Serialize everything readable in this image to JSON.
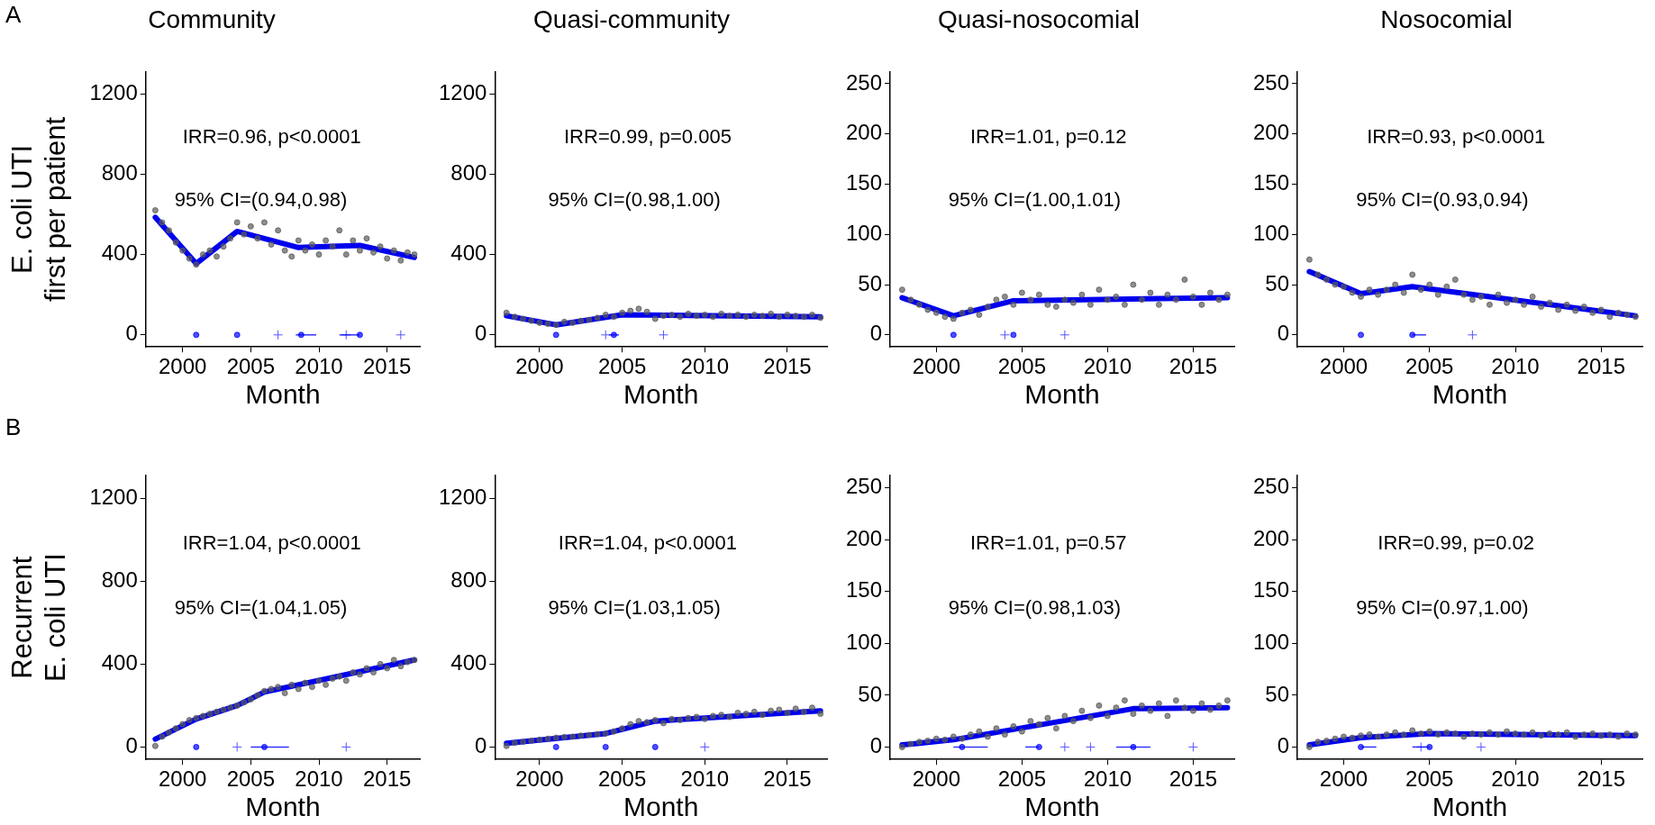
{
  "chart_data": [
    {
      "type": "scatter",
      "title": "Community",
      "xlabel": "Month",
      "ylabel": [
        "E. coli UTI",
        "first per patient"
      ],
      "xlim": [
        1997.3,
        2017.4
      ],
      "xticks": [
        2000,
        2005,
        2010,
        2015
      ],
      "ylim": [
        -60,
        1310
      ],
      "yticks": [
        0,
        400,
        800,
        1200
      ],
      "annotations": [
        "IRR=0.96, p<0.0001",
        "95% CI=(0.94,0.98)",
        "A"
      ],
      "series": [
        {
          "type": "scatter",
          "color": "#5a5a5a",
          "marker": "circle",
          "x": [
            1998,
            1998.5,
            1999,
            1999.5,
            2000,
            2000.5,
            2001,
            2001.5,
            2002,
            2002.5,
            2003,
            2003.5,
            2004,
            2004.5,
            2005,
            2005.5,
            2006,
            2006.5,
            2007,
            2007.5,
            2008,
            2008.5,
            2009,
            2009.5,
            2010,
            2010.5,
            2011,
            2011.5,
            2012,
            2012.5,
            2013,
            2013.5,
            2014,
            2014.5,
            2015,
            2015.5,
            2016,
            2016.5,
            2017
          ],
          "values": [
            620,
            560,
            520,
            460,
            420,
            380,
            350,
            400,
            420,
            390,
            440,
            480,
            560,
            500,
            540,
            480,
            560,
            450,
            520,
            420,
            390,
            470,
            420,
            450,
            400,
            470,
            440,
            520,
            400,
            470,
            420,
            480,
            410,
            440,
            380,
            420,
            370,
            410,
            400
          ]
        },
        {
          "type": "line",
          "color": "#0000ee",
          "x": [
            1998,
            2001,
            2004,
            2008.5,
            2013,
            2017
          ],
          "values": [
            585,
            355,
            515,
            435,
            445,
            385
          ]
        },
        {
          "type": "scatter",
          "color": "#0000ff",
          "marker": "circle",
          "x": [
            2001,
            2004,
            2008.7,
            2013
          ],
          "values": [
            0,
            0,
            0,
            0
          ],
          "xerrors": [
            null,
            null,
            [
              2008.3,
              2009.8
            ],
            [
              2011.5,
              2013
            ]
          ]
        },
        {
          "type": "scatter",
          "color": "#5555ff",
          "marker": "cross",
          "x": [
            2007,
            2012,
            2016
          ],
          "values": [
            0,
            0,
            0
          ]
        }
      ]
    },
    {
      "type": "scatter",
      "title": "Quasi-community",
      "xlabel": "Month",
      "xlim": [
        1997.3,
        2017.4
      ],
      "xticks": [
        2000,
        2005,
        2010,
        2015
      ],
      "ylim": [
        -60,
        1310
      ],
      "yticks": [
        0,
        400,
        800,
        1200
      ],
      "annotations": [
        "IRR=0.99, p=0.005",
        "95% CI=(0.98,1.00)"
      ],
      "series": [
        {
          "type": "scatter",
          "color": "#5a5a5a",
          "marker": "circle",
          "x": [
            1998,
            1998.5,
            1999,
            1999.5,
            2000,
            2000.5,
            2001,
            2001.5,
            2002,
            2002.5,
            2003,
            2003.5,
            2004,
            2004.5,
            2005,
            2005.5,
            2006,
            2006.5,
            2007,
            2007.5,
            2008,
            2008.5,
            2009,
            2009.5,
            2010,
            2010.5,
            2011,
            2011.5,
            2012,
            2012.5,
            2013,
            2013.5,
            2014,
            2014.5,
            2015,
            2015.5,
            2016,
            2016.5,
            2017
          ],
          "values": [
            110,
            90,
            80,
            70,
            60,
            55,
            50,
            65,
            60,
            70,
            75,
            85,
            100,
            90,
            110,
            120,
            130,
            115,
            80,
            95,
            100,
            90,
            105,
            95,
            100,
            90,
            105,
            95,
            100,
            90,
            100,
            95,
            105,
            90,
            100,
            95,
            90,
            100,
            85
          ]
        },
        {
          "type": "line",
          "color": "#0000ee",
          "x": [
            1998,
            2001,
            2005,
            2017
          ],
          "values": [
            95,
            50,
            100,
            90
          ]
        },
        {
          "type": "scatter",
          "color": "#0000ff",
          "marker": "circle",
          "x": [
            2001,
            2004.5
          ],
          "values": [
            0,
            0
          ],
          "xerrors": [
            null,
            [
              2004.2,
              2004.8
            ]
          ]
        },
        {
          "type": "scatter",
          "color": "#5555ff",
          "marker": "cross",
          "x": [
            2004,
            2007.5
          ],
          "values": [
            0,
            0
          ]
        }
      ]
    },
    {
      "type": "scatter",
      "title": "Quasi-nosocomial",
      "xlabel": "Month",
      "xlim": [
        1997.3,
        2017.4
      ],
      "xticks": [
        2000,
        2005,
        2010,
        2015
      ],
      "ylim": [
        -12,
        262
      ],
      "yticks": [
        0,
        50,
        100,
        150,
        200,
        250
      ],
      "annotations": [
        "IRR=1.01, p=0.12",
        "95% CI=(1.00,1.01)"
      ],
      "series": [
        {
          "type": "scatter",
          "color": "#5a5a5a",
          "marker": "circle",
          "x": [
            1998,
            1998.5,
            1999,
            1999.5,
            2000,
            2000.5,
            2001,
            2001.5,
            2002,
            2002.5,
            2003,
            2003.5,
            2004,
            2004.5,
            2005,
            2005.5,
            2006,
            2006.5,
            2007,
            2007.5,
            2008,
            2008.5,
            2009,
            2009.5,
            2010,
            2010.5,
            2011,
            2011.5,
            2012,
            2012.5,
            2013,
            2013.5,
            2014,
            2014.5,
            2015,
            2015.5,
            2016,
            2016.5,
            2017
          ],
          "values": [
            45,
            35,
            30,
            25,
            22,
            18,
            16,
            22,
            25,
            20,
            28,
            35,
            38,
            30,
            42,
            35,
            40,
            30,
            28,
            35,
            32,
            40,
            30,
            45,
            35,
            38,
            30,
            50,
            35,
            42,
            30,
            40,
            35,
            55,
            38,
            30,
            42,
            35,
            40
          ]
        },
        {
          "type": "line",
          "color": "#0000ee",
          "x": [
            1998,
            2001,
            2004.5,
            2017
          ],
          "values": [
            37,
            19,
            34,
            37
          ]
        },
        {
          "type": "scatter",
          "color": "#0000ff",
          "marker": "circle",
          "x": [
            2001,
            2004.5
          ],
          "values": [
            0,
            0
          ]
        },
        {
          "type": "scatter",
          "color": "#5555ff",
          "marker": "cross",
          "x": [
            2004,
            2007.5
          ],
          "values": [
            0,
            0
          ]
        }
      ]
    },
    {
      "type": "scatter",
      "title": "Nosocomial",
      "xlabel": "Month",
      "xlim": [
        1997.3,
        2017.4
      ],
      "xticks": [
        2000,
        2005,
        2010,
        2015
      ],
      "ylim": [
        -12,
        262
      ],
      "yticks": [
        0,
        50,
        100,
        150,
        200,
        250
      ],
      "annotations": [
        "IRR=0.93, p<0.0001",
        "95% CI=(0.93,0.94)"
      ],
      "series": [
        {
          "type": "scatter",
          "color": "#5a5a5a",
          "marker": "circle",
          "x": [
            1998,
            1998.5,
            1999,
            1999.5,
            2000,
            2000.5,
            2001,
            2001.5,
            2002,
            2002.5,
            2003,
            2003.5,
            2004,
            2004.5,
            2005,
            2005.5,
            2006,
            2006.5,
            2007,
            2007.5,
            2008,
            2008.5,
            2009,
            2009.5,
            2010,
            2010.5,
            2011,
            2011.5,
            2012,
            2012.5,
            2013,
            2013.5,
            2014,
            2014.5,
            2015,
            2015.5,
            2016,
            2016.5,
            2017
          ],
          "values": [
            75,
            60,
            55,
            50,
            48,
            42,
            38,
            45,
            40,
            45,
            50,
            42,
            60,
            45,
            50,
            40,
            48,
            55,
            40,
            35,
            38,
            30,
            40,
            32,
            35,
            30,
            38,
            28,
            32,
            25,
            30,
            24,
            28,
            22,
            25,
            18,
            22,
            20,
            18
          ]
        },
        {
          "type": "line",
          "color": "#0000ee",
          "x": [
            1998,
            2001,
            2004,
            2017
          ],
          "values": [
            63,
            41,
            48,
            19
          ]
        },
        {
          "type": "scatter",
          "color": "#0000ff",
          "marker": "circle",
          "x": [
            2001,
            2004
          ],
          "values": [
            0,
            0
          ],
          "xerrors": [
            null,
            [
              2004,
              2004.8
            ]
          ]
        },
        {
          "type": "scatter",
          "color": "#5555ff",
          "marker": "cross",
          "x": [
            2007.5
          ],
          "values": [
            0
          ]
        }
      ]
    },
    {
      "type": "scatter",
      "xlabel": "Month",
      "ylabel": [
        "Recurrent",
        "E. coli UTI"
      ],
      "xlim": [
        1997.3,
        2017.4
      ],
      "xticks": [
        2000,
        2005,
        2010,
        2015
      ],
      "ylim": [
        -60,
        1310
      ],
      "yticks": [
        0,
        400,
        800,
        1200
      ],
      "annotations": [
        "IRR=1.04, p<0.0001",
        "95% CI=(1.04,1.05)",
        "B"
      ],
      "series": [
        {
          "type": "scatter",
          "color": "#5a5a5a",
          "marker": "circle",
          "x": [
            1998,
            1998.5,
            1999,
            1999.5,
            2000,
            2000.5,
            2001,
            2001.5,
            2002,
            2002.5,
            2003,
            2003.5,
            2004,
            2004.5,
            2005,
            2005.5,
            2006,
            2006.5,
            2007,
            2007.5,
            2008,
            2008.5,
            2009,
            2009.5,
            2010,
            2010.5,
            2011,
            2011.5,
            2012,
            2012.5,
            2013,
            2013.5,
            2014,
            2014.5,
            2015,
            2015.5,
            2016,
            2016.5,
            2017
          ],
          "values": [
            5,
            50,
            70,
            90,
            110,
            130,
            140,
            150,
            160,
            170,
            180,
            190,
            200,
            215,
            230,
            250,
            270,
            280,
            290,
            260,
            300,
            280,
            310,
            290,
            320,
            300,
            330,
            340,
            320,
            360,
            350,
            380,
            360,
            400,
            380,
            420,
            390,
            410,
            420
          ]
        },
        {
          "type": "line",
          "color": "#0000ee",
          "x": [
            1998,
            2001,
            2004,
            2006,
            2017
          ],
          "values": [
            38,
            135,
            200,
            265,
            420
          ]
        },
        {
          "type": "scatter",
          "color": "#0000ff",
          "marker": "circle",
          "x": [
            2001,
            2006
          ],
          "values": [
            0,
            0
          ],
          "xerrors": [
            null,
            [
              2005,
              2007.8
            ]
          ]
        },
        {
          "type": "scatter",
          "color": "#5555ff",
          "marker": "cross",
          "x": [
            2004,
            2012
          ],
          "values": [
            0,
            0
          ]
        }
      ]
    },
    {
      "type": "scatter",
      "xlabel": "Month",
      "xlim": [
        1997.3,
        2017.4
      ],
      "xticks": [
        2000,
        2005,
        2010,
        2015
      ],
      "ylim": [
        -60,
        1310
      ],
      "yticks": [
        0,
        400,
        800,
        1200
      ],
      "annotations": [
        "IRR=1.04, p<0.0001",
        "95% CI=(1.03,1.05)"
      ],
      "series": [
        {
          "type": "scatter",
          "color": "#5a5a5a",
          "marker": "circle",
          "x": [
            1998,
            1998.5,
            1999,
            1999.5,
            2000,
            2000.5,
            2001,
            2001.5,
            2002,
            2002.5,
            2003,
            2003.5,
            2004,
            2004.5,
            2005,
            2005.5,
            2006,
            2006.5,
            2007,
            2007.5,
            2008,
            2008.5,
            2009,
            2009.5,
            2010,
            2010.5,
            2011,
            2011.5,
            2012,
            2012.5,
            2013,
            2013.5,
            2014,
            2014.5,
            2015,
            2015.5,
            2016,
            2016.5,
            2017
          ],
          "values": [
            5,
            20,
            25,
            30,
            35,
            40,
            45,
            48,
            50,
            55,
            58,
            62,
            65,
            75,
            90,
            110,
            125,
            120,
            130,
            115,
            135,
            130,
            140,
            145,
            135,
            150,
            155,
            145,
            165,
            160,
            170,
            155,
            175,
            180,
            165,
            185,
            170,
            190,
            160
          ]
        },
        {
          "type": "line",
          "color": "#0000ee",
          "x": [
            1998,
            2004,
            2007,
            2017
          ],
          "values": [
            18,
            65,
            125,
            175
          ]
        },
        {
          "type": "scatter",
          "color": "#0000ff",
          "marker": "circle",
          "x": [
            2001,
            2004,
            2007
          ],
          "values": [
            0,
            0,
            0
          ]
        },
        {
          "type": "scatter",
          "color": "#5555ff",
          "marker": "cross",
          "x": [
            2010
          ],
          "values": [
            0
          ]
        }
      ]
    },
    {
      "type": "scatter",
      "xlabel": "Month",
      "xlim": [
        1997.3,
        2017.4
      ],
      "xticks": [
        2000,
        2005,
        2010,
        2015
      ],
      "ylim": [
        -12,
        262
      ],
      "yticks": [
        0,
        50,
        100,
        150,
        200,
        250
      ],
      "annotations": [
        "IRR=1.01, p=0.57",
        "95% CI=(0.98,1.03)"
      ],
      "series": [
        {
          "type": "scatter",
          "color": "#5a5a5a",
          "marker": "circle",
          "x": [
            1998,
            1998.5,
            1999,
            1999.5,
            2000,
            2000.5,
            2001,
            2001.5,
            2002,
            2002.5,
            2003,
            2003.5,
            2004,
            2004.5,
            2005,
            2005.5,
            2006,
            2006.5,
            2007,
            2007.5,
            2008,
            2008.5,
            2009,
            2009.5,
            2010,
            2010.5,
            2011,
            2011.5,
            2012,
            2012.5,
            2013,
            2013.5,
            2014,
            2014.5,
            2015,
            2015.5,
            2016,
            2016.5,
            2017
          ],
          "values": [
            0,
            3,
            5,
            6,
            8,
            7,
            10,
            8,
            12,
            15,
            10,
            18,
            12,
            20,
            15,
            25,
            22,
            28,
            18,
            30,
            25,
            35,
            28,
            40,
            30,
            38,
            45,
            32,
            40,
            35,
            42,
            30,
            45,
            38,
            35,
            42,
            36,
            40,
            45
          ]
        },
        {
          "type": "line",
          "color": "#0000ee",
          "x": [
            1998,
            2001,
            2011.5,
            2017
          ],
          "values": [
            2,
            7,
            37,
            38
          ]
        },
        {
          "type": "scatter",
          "color": "#0000ff",
          "marker": "circle",
          "x": [
            2001.5,
            2006,
            2011.5
          ],
          "values": [
            0,
            0,
            0
          ],
          "xerrors": [
            [
              2001,
              2003
            ],
            [
              2005.2,
              2006
            ],
            [
              2010.5,
              2012.5
            ]
          ]
        },
        {
          "type": "scatter",
          "color": "#5555ff",
          "marker": "cross",
          "x": [
            2007.5,
            2009,
            2015
          ],
          "values": [
            0,
            0,
            0
          ]
        }
      ]
    },
    {
      "type": "scatter",
      "xlabel": "Month",
      "xlim": [
        1997.3,
        2017.4
      ],
      "xticks": [
        2000,
        2005,
        2010,
        2015
      ],
      "ylim": [
        -12,
        262
      ],
      "yticks": [
        0,
        50,
        100,
        150,
        200,
        250
      ],
      "annotations": [
        "IRR=0.99, p=0.02",
        "95% CI=(0.97,1.00)"
      ],
      "series": [
        {
          "type": "scatter",
          "color": "#5a5a5a",
          "marker": "circle",
          "x": [
            1998,
            1998.5,
            1999,
            1999.5,
            2000,
            2000.5,
            2001,
            2001.5,
            2002,
            2002.5,
            2003,
            2003.5,
            2004,
            2004.5,
            2005,
            2005.5,
            2006,
            2006.5,
            2007,
            2007.5,
            2008,
            2008.5,
            2009,
            2009.5,
            2010,
            2010.5,
            2011,
            2011.5,
            2012,
            2012.5,
            2013,
            2013.5,
            2014,
            2014.5,
            2015,
            2015.5,
            2016,
            2016.5,
            2017
          ],
          "values": [
            0,
            5,
            6,
            8,
            10,
            9,
            11,
            12,
            10,
            12,
            14,
            12,
            16,
            13,
            15,
            12,
            14,
            13,
            10,
            13,
            12,
            14,
            12,
            15,
            13,
            12,
            14,
            11,
            13,
            12,
            14,
            10,
            12,
            13,
            11,
            12,
            10,
            13,
            12
          ]
        },
        {
          "type": "line",
          "color": "#0000ee",
          "x": [
            1998,
            2001,
            2005,
            2017
          ],
          "values": [
            2,
            9,
            13,
            11
          ]
        },
        {
          "type": "scatter",
          "color": "#0000ff",
          "marker": "circle",
          "x": [
            2001,
            2005
          ],
          "values": [
            0,
            0
          ],
          "xerrors": [
            [
              2001,
              2001.9
            ],
            [
              2004,
              2005
            ]
          ]
        },
        {
          "type": "scatter",
          "color": "#5555ff",
          "marker": "cross",
          "x": [
            2004.5,
            2008
          ],
          "values": [
            0,
            0
          ]
        }
      ]
    }
  ]
}
